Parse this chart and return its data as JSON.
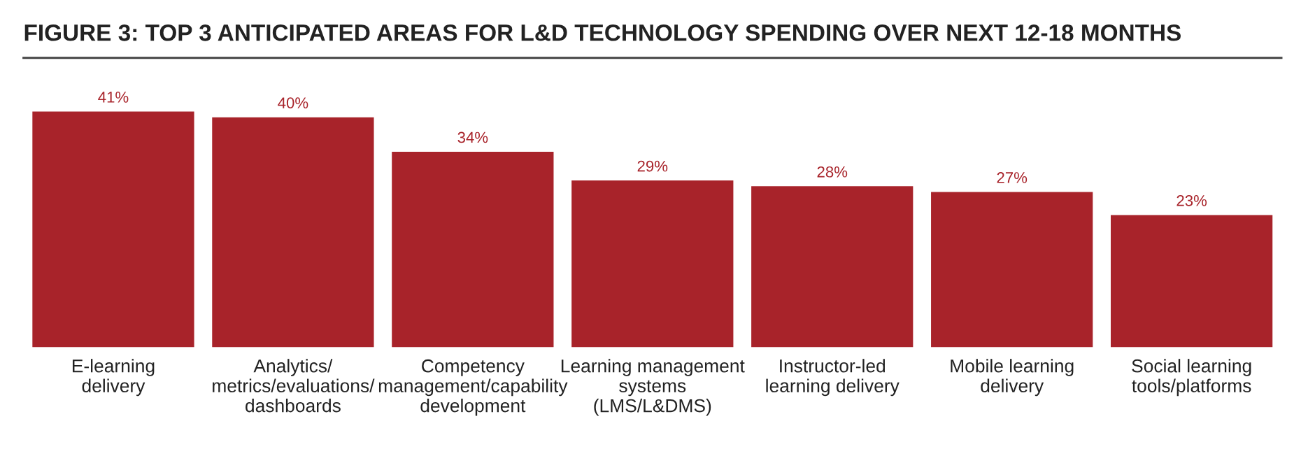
{
  "chart_data": {
    "type": "bar",
    "title": "FIGURE 3: TOP 3 ANTICIPATED AREAS FOR L&D TECHNOLOGY SPENDING OVER NEXT 12-18 MONTHS",
    "categories": [
      "E-learning\ndelivery",
      "Analytics/\nmetrics/evaluations/\ndashboards",
      "Competency\nmanagement/capability\ndevelopment",
      "Learning management\nsystems\n(LMS/L&DMS)",
      "Instructor-led\nlearning delivery",
      "Mobile learning\ndelivery",
      "Social learning\ntools/platforms"
    ],
    "values": [
      41,
      40,
      34,
      29,
      28,
      27,
      23
    ],
    "value_labels": [
      "41%",
      "40%",
      "34%",
      "29%",
      "28%",
      "27%",
      "23%"
    ],
    "color": "#a8232a"
  }
}
